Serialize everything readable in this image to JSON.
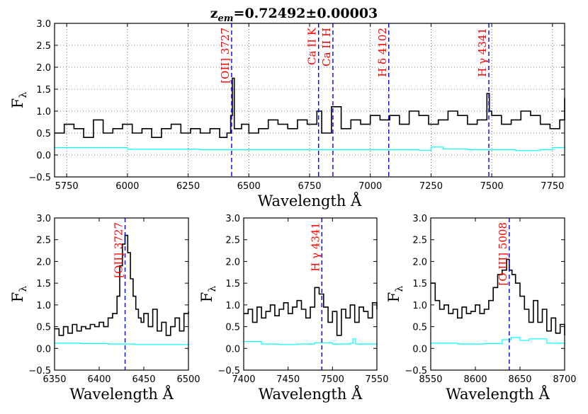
{
  "figure_title": "z_em=0.72492±0.00003",
  "title_main": "z",
  "title_sub": "em",
  "title_rest": "=0.72492±0.00003",
  "chart_data": [
    {
      "type": "line",
      "panel": "top",
      "xlabel": "Wavelength Å",
      "ylabel_main": "F",
      "ylabel_sub": "λ",
      "xlim": [
        5700,
        7800
      ],
      "ylim": [
        -0.5,
        3.0
      ],
      "xticks": [
        5750,
        6000,
        6250,
        6500,
        6750,
        7000,
        7250,
        7500,
        7750
      ],
      "yticks": [
        -0.5,
        0.0,
        0.5,
        1.0,
        1.5,
        2.0,
        2.5,
        3.0
      ],
      "grid": true,
      "lines": [
        {
          "label": "[OII] 3727",
          "x": 6429
        },
        {
          "label": "Ca II K",
          "x": 6787
        },
        {
          "label": "Ca II H",
          "x": 6846
        },
        {
          "label": "H δ 4102",
          "x": 7076
        },
        {
          "label": "H γ 4341",
          "x": 7488
        }
      ],
      "series": [
        {
          "name": "flux",
          "color": "#000000",
          "x": [
            5700,
            5740,
            5780,
            5820,
            5860,
            5900,
            5940,
            5980,
            6020,
            6060,
            6100,
            6140,
            6180,
            6220,
            6260,
            6300,
            6340,
            6380,
            6410,
            6425,
            6432,
            6440,
            6470,
            6500,
            6540,
            6580,
            6620,
            6660,
            6700,
            6740,
            6780,
            6800,
            6840,
            6880,
            6920,
            6960,
            7000,
            7040,
            7080,
            7120,
            7160,
            7200,
            7240,
            7280,
            7320,
            7360,
            7400,
            7440,
            7480,
            7490,
            7500,
            7540,
            7580,
            7620,
            7660,
            7700,
            7740,
            7780,
            7800
          ],
          "y": [
            0.5,
            0.7,
            0.6,
            0.4,
            0.8,
            0.5,
            0.6,
            0.7,
            0.5,
            0.6,
            0.4,
            0.6,
            0.7,
            0.5,
            0.6,
            0.5,
            0.6,
            0.4,
            0.5,
            0.9,
            1.75,
            0.6,
            0.7,
            0.5,
            0.6,
            0.8,
            0.7,
            0.6,
            0.8,
            0.7,
            1.0,
            0.5,
            1.1,
            0.6,
            0.8,
            0.7,
            0.9,
            0.8,
            0.9,
            0.7,
            1.0,
            0.9,
            0.7,
            0.8,
            1.0,
            0.9,
            0.7,
            0.8,
            1.4,
            1.0,
            0.9,
            0.7,
            0.8,
            1.0,
            0.9,
            0.7,
            0.6,
            0.8,
            1.3
          ]
        },
        {
          "name": "error",
          "color": "#00ffff",
          "x": [
            5700,
            6000,
            6300,
            6600,
            6900,
            7200,
            7250,
            7300,
            7400,
            7500,
            7600,
            7700,
            7750,
            7800
          ],
          "y": [
            0.17,
            0.13,
            0.12,
            0.12,
            0.12,
            0.11,
            0.18,
            0.14,
            0.12,
            0.12,
            0.1,
            0.12,
            0.17,
            0.18
          ]
        }
      ]
    },
    {
      "type": "line",
      "panel": "bottom-left",
      "xlabel": "Wavelength Å",
      "ylabel_main": "F",
      "ylabel_sub": "λ",
      "xlim": [
        6350,
        6500
      ],
      "ylim": [
        -0.5,
        3.0
      ],
      "xticks": [
        6350,
        6400,
        6450,
        6500
      ],
      "yticks": [
        -0.5,
        0.0,
        0.5,
        1.0,
        1.5,
        2.0,
        2.5,
        3.0
      ],
      "grid": false,
      "lines": [
        {
          "label": "[OII] 3727",
          "x": 6429
        }
      ],
      "series": [
        {
          "name": "flux",
          "color": "#000000",
          "x": [
            6350,
            6355,
            6360,
            6365,
            6370,
            6375,
            6380,
            6385,
            6390,
            6395,
            6400,
            6405,
            6410,
            6415,
            6420,
            6423,
            6426,
            6429,
            6432,
            6435,
            6438,
            6441,
            6444,
            6447,
            6450,
            6455,
            6460,
            6465,
            6470,
            6475,
            6480,
            6485,
            6490,
            6495,
            6500
          ],
          "y": [
            0.45,
            0.3,
            0.5,
            0.35,
            0.55,
            0.4,
            0.5,
            0.45,
            0.55,
            0.5,
            0.6,
            0.5,
            0.7,
            0.8,
            1.2,
            1.9,
            2.4,
            2.6,
            2.2,
            1.6,
            1.2,
            0.9,
            0.7,
            0.6,
            0.8,
            0.5,
            0.9,
            0.4,
            0.6,
            0.3,
            0.5,
            0.7,
            0.4,
            0.8,
            0.85
          ]
        },
        {
          "name": "error",
          "color": "#00ffff",
          "x": [
            6350,
            6380,
            6410,
            6440,
            6470,
            6500
          ],
          "y": [
            0.12,
            0.11,
            0.1,
            0.09,
            0.09,
            0.11
          ]
        }
      ]
    },
    {
      "type": "line",
      "panel": "bottom-middle",
      "xlabel": "Wavelength Å",
      "ylabel_main": "F",
      "ylabel_sub": "λ",
      "xlim": [
        7400,
        7550
      ],
      "ylim": [
        -0.5,
        3.0
      ],
      "xticks": [
        7400,
        7450,
        7500,
        7550
      ],
      "yticks": [
        -0.5,
        0.0,
        0.5,
        1.0,
        1.5,
        2.0,
        2.5,
        3.0
      ],
      "grid": false,
      "lines": [
        {
          "label": "H γ 4341",
          "x": 7488
        }
      ],
      "series": [
        {
          "name": "flux",
          "color": "#000000",
          "x": [
            7400,
            7405,
            7410,
            7415,
            7420,
            7425,
            7430,
            7435,
            7440,
            7445,
            7450,
            7455,
            7460,
            7465,
            7470,
            7475,
            7480,
            7485,
            7490,
            7495,
            7500,
            7505,
            7510,
            7515,
            7520,
            7525,
            7530,
            7535,
            7540,
            7545,
            7550
          ],
          "y": [
            0.8,
            0.9,
            0.6,
            0.95,
            0.7,
            0.85,
            1.0,
            0.75,
            0.9,
            1.05,
            0.8,
            0.95,
            1.1,
            0.9,
            0.7,
            0.95,
            1.4,
            1.25,
            0.95,
            0.6,
            0.85,
            0.3,
            0.9,
            0.7,
            1.0,
            0.6,
            0.95,
            0.85,
            0.7,
            1.05,
            0.9
          ]
        },
        {
          "name": "error",
          "color": "#00ffff",
          "x": [
            7400,
            7420,
            7440,
            7460,
            7480,
            7500,
            7520,
            7523,
            7526,
            7550
          ],
          "y": [
            0.16,
            0.1,
            0.09,
            0.1,
            0.13,
            0.1,
            0.12,
            0.22,
            0.1,
            0.08
          ]
        }
      ]
    },
    {
      "type": "line",
      "panel": "bottom-right",
      "xlabel": "Wavelength Å",
      "ylabel_main": "F",
      "ylabel_sub": "λ",
      "xlim": [
        8550,
        8700
      ],
      "ylim": [
        -0.5,
        3.0
      ],
      "xticks": [
        8550,
        8600,
        8650,
        8700
      ],
      "yticks": [
        -0.5,
        0.0,
        0.5,
        1.0,
        1.5,
        2.0,
        2.5,
        3.0
      ],
      "grid": false,
      "lines": [
        {
          "label": "[O III] 5008",
          "x": 8638
        }
      ],
      "series": [
        {
          "name": "flux",
          "color": "#000000",
          "x": [
            8550,
            8555,
            8560,
            8565,
            8570,
            8575,
            8580,
            8585,
            8590,
            8595,
            8600,
            8605,
            8610,
            8615,
            8620,
            8625,
            8630,
            8635,
            8638,
            8641,
            8645,
            8650,
            8655,
            8660,
            8665,
            8670,
            8675,
            8680,
            8685,
            8690,
            8695,
            8700
          ],
          "y": [
            1.5,
            1.1,
            0.9,
            1.0,
            0.8,
            0.9,
            0.7,
            0.95,
            0.8,
            0.85,
            1.0,
            0.8,
            0.9,
            1.1,
            1.4,
            1.7,
            1.8,
            2.05,
            1.8,
            1.7,
            1.5,
            1.2,
            0.9,
            0.6,
            1.1,
            0.6,
            0.9,
            0.4,
            0.7,
            0.35,
            0.55,
            0.3
          ]
        },
        {
          "name": "error",
          "color": "#00ffff",
          "x": [
            8550,
            8580,
            8610,
            8630,
            8640,
            8650,
            8660,
            8680,
            8700
          ],
          "y": [
            0.12,
            0.1,
            0.11,
            0.2,
            0.25,
            0.18,
            0.22,
            0.12,
            0.05
          ]
        }
      ]
    }
  ]
}
